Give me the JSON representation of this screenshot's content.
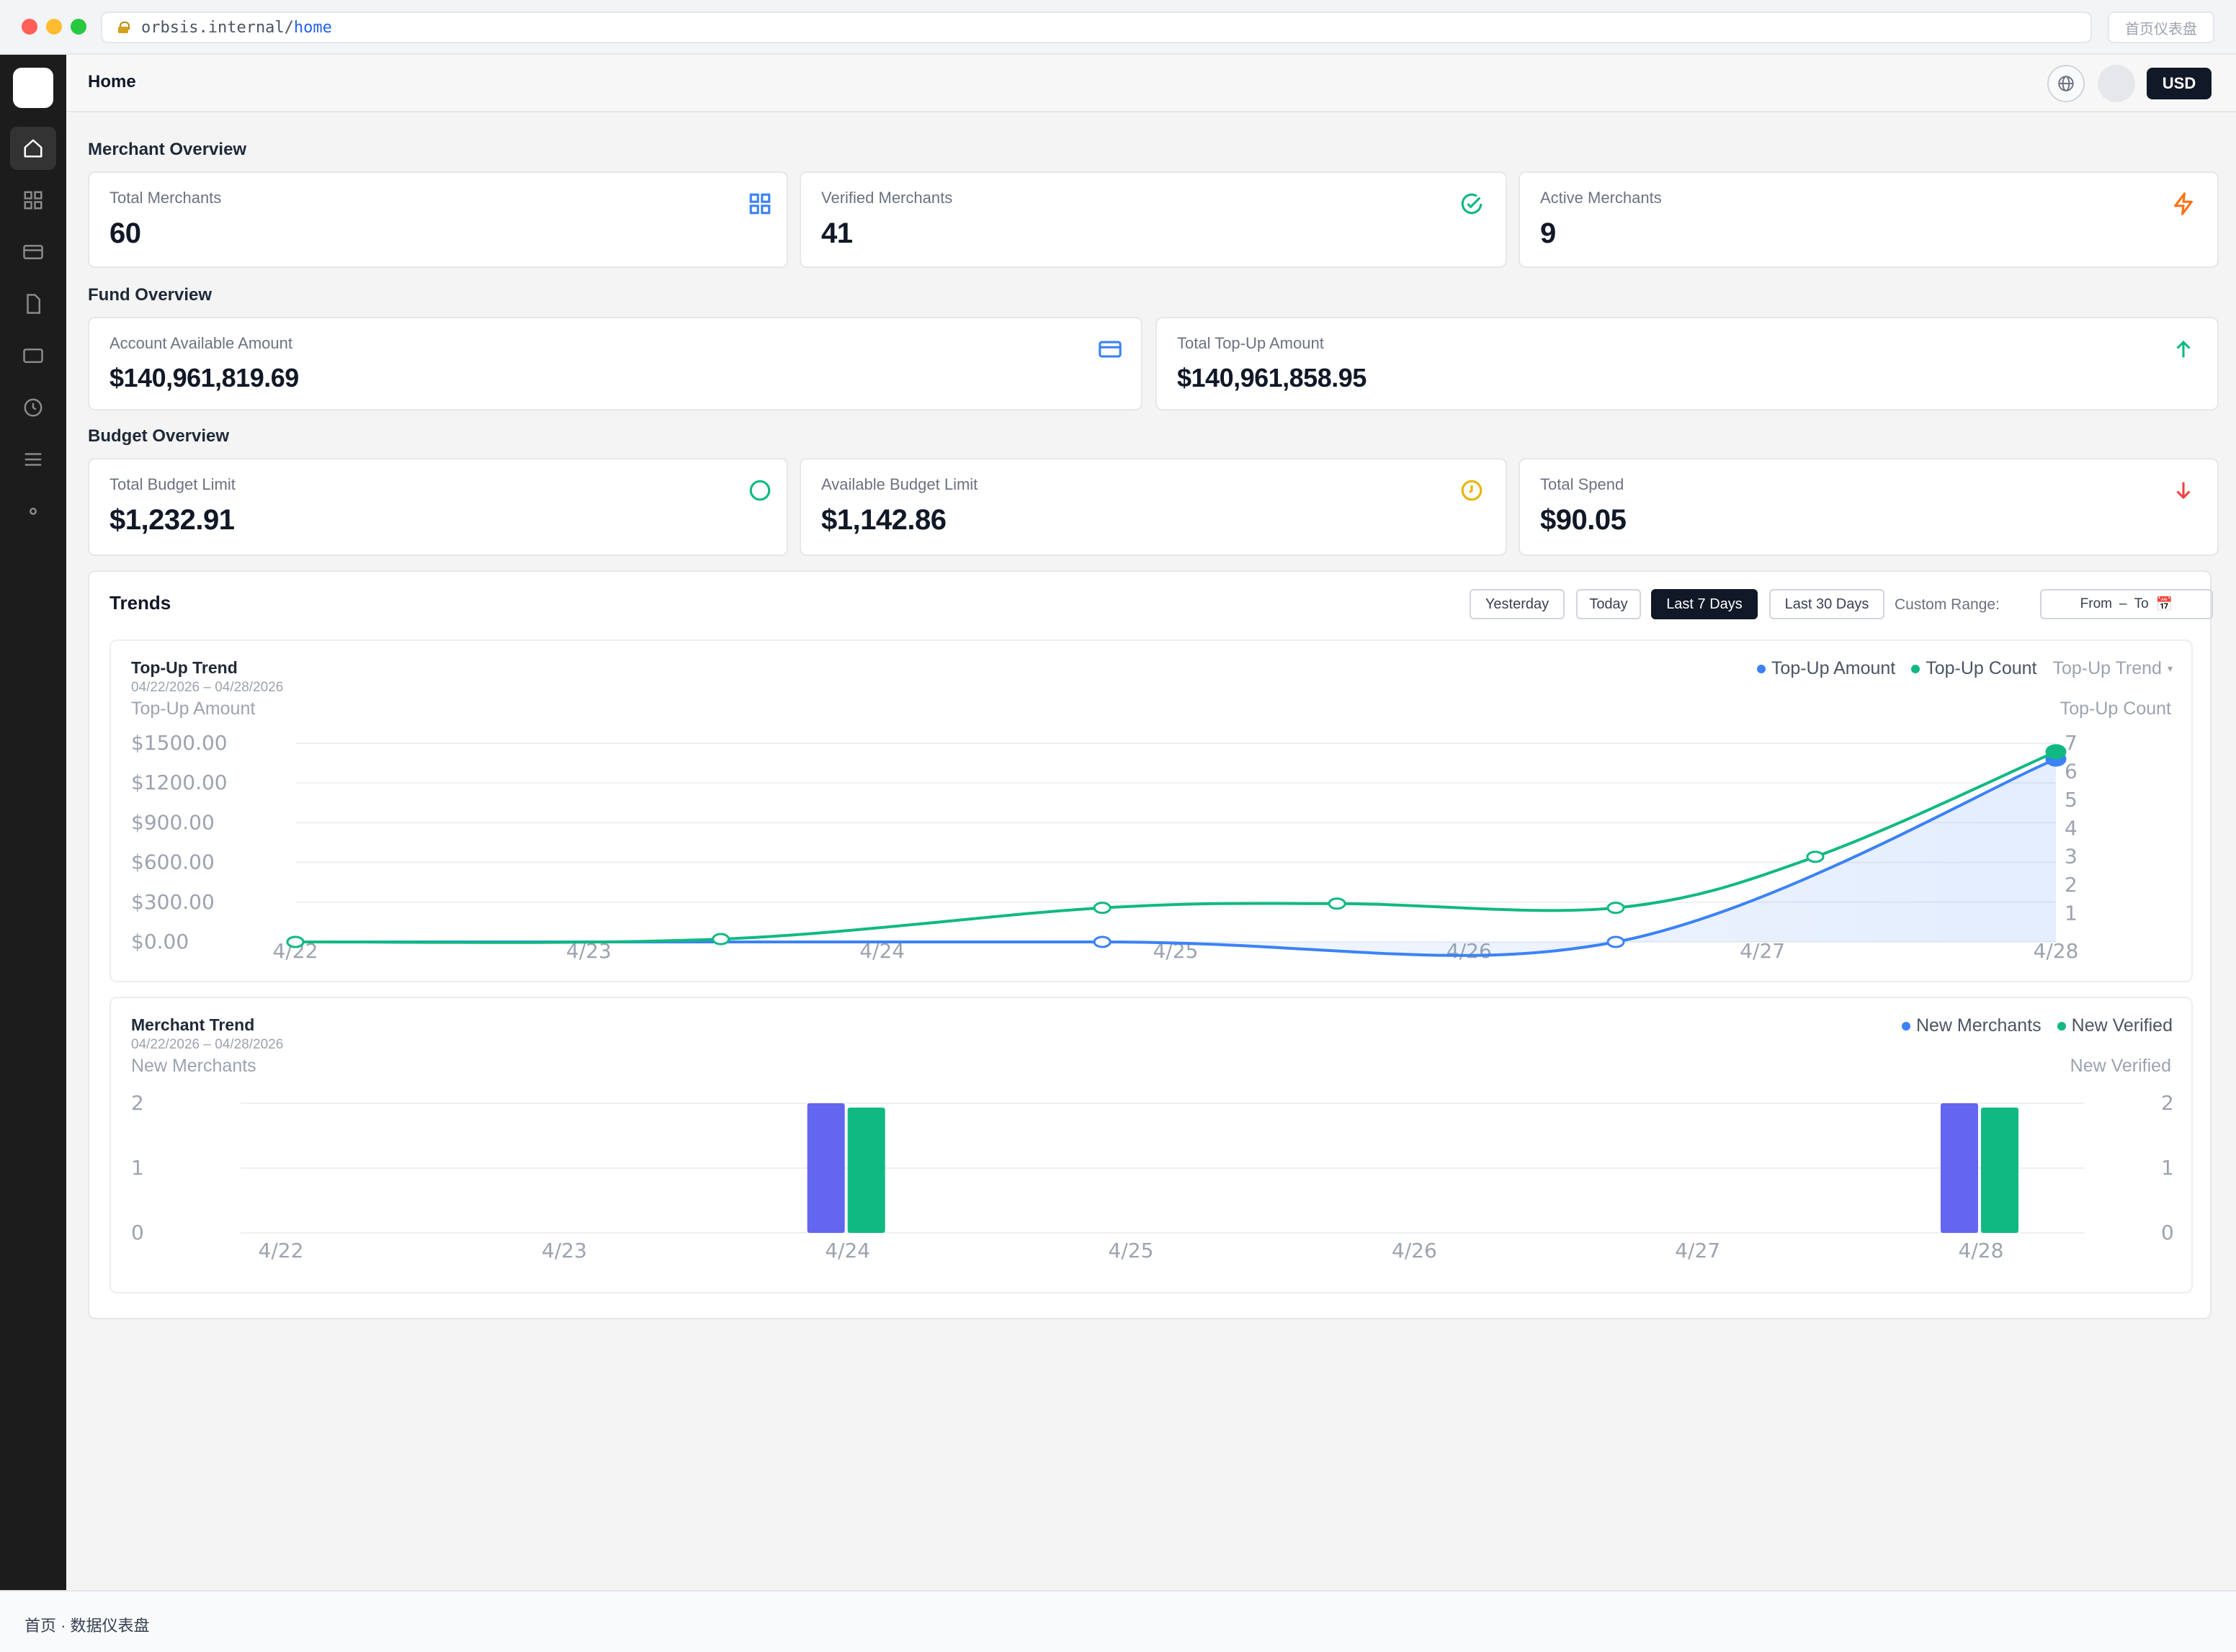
{
  "browser": {
    "url_host": "orbsis.internal/",
    "url_path": "home",
    "tab_title": "首页仪表盘"
  },
  "topbar": {
    "title": "Home",
    "currency": "USD"
  },
  "merchant_overview": {
    "title": "Merchant Overview",
    "cards": [
      {
        "label": "Total Merchants",
        "value": "60",
        "icon": "grid-icon",
        "color": "#3b82f6"
      },
      {
        "label": "Verified Merchants",
        "value": "41",
        "icon": "check-circle-icon",
        "color": "#10b981"
      },
      {
        "label": "Active Merchants",
        "value": "9",
        "icon": "lightning-icon",
        "color": "#f97316"
      }
    ]
  },
  "fund_overview": {
    "title": "Fund Overview",
    "cards": [
      {
        "label": "Account Available Amount",
        "value": "$140,961,819.69",
        "icon": "credit-card-icon",
        "color": "#3b82f6"
      },
      {
        "label": "Total Top-Up Amount",
        "value": "$140,961,858.95",
        "icon": "arrow-up-icon",
        "color": "#10b981"
      }
    ]
  },
  "budget_overview": {
    "title": "Budget Overview",
    "cards": [
      {
        "label": "Total Budget Limit",
        "value": "$1,232.91",
        "icon": "circle-icon",
        "color": "#10b981"
      },
      {
        "label": "Available Budget Limit",
        "value": "$1,142.86",
        "icon": "clock-icon",
        "color": "#eab308"
      },
      {
        "label": "Total Spend",
        "value": "$90.05",
        "icon": "arrow-down-icon",
        "color": "#ef4444"
      }
    ]
  },
  "trends": {
    "title": "Trends",
    "ranges": [
      "Yesterday",
      "Today",
      "Last 7 Days",
      "Last 30 Days"
    ],
    "active_range": "Last 7 Days",
    "custom_label": "Custom Range:",
    "from_label": "From",
    "dash": "–",
    "to_label": "To",
    "calendar_glyph": "📅"
  },
  "chart_data": [
    {
      "type": "line",
      "title": "Top-Up Trend",
      "subtitle": "04/22/2026 – 04/28/2026",
      "ylabel": "Top-Up Amount",
      "y2label": "Top-Up Count",
      "selector": "Top-Up Trend",
      "x": [
        "4/22",
        "4/23",
        "4/24",
        "4/25",
        "4/26",
        "4/27",
        "4/28"
      ],
      "ylim": [
        0,
        1500
      ],
      "yticks": [
        "$0.00",
        "$300.00",
        "$600.00",
        "$900.00",
        "$1200.00",
        "$1500.00"
      ],
      "y2lim": [
        0,
        7
      ],
      "y2ticks": [
        "1",
        "2",
        "3",
        "4",
        "5",
        "6",
        "7"
      ],
      "series": [
        {
          "name": "Top-Up Amount",
          "axis": "left",
          "color": "#3b82f6",
          "points": [
            [
              0,
              0
            ],
            [
              2.75,
              0
            ],
            [
              4.5,
              0
            ],
            [
              6,
              1380
            ]
          ]
        },
        {
          "name": "Top-Up Count",
          "axis": "right",
          "color": "#10b981",
          "points": [
            [
              0,
              0
            ],
            [
              1.45,
              0.1
            ],
            [
              2.75,
              1.2
            ],
            [
              3.55,
              1.35
            ],
            [
              4.5,
              1.2
            ],
            [
              5.18,
              3.0
            ],
            [
              6,
              6.7
            ]
          ]
        }
      ],
      "legend": "top-right",
      "grid": true
    },
    {
      "type": "bar",
      "title": "Merchant Trend",
      "subtitle": "04/22/2026 – 04/28/2026",
      "ylabel": "New Merchants",
      "y2label": "New Verified",
      "categories": [
        "4/22",
        "4/23",
        "4/24",
        "4/25",
        "4/26",
        "4/27",
        "4/28"
      ],
      "ylim": [
        0,
        2
      ],
      "yticks": [
        "0",
        "1",
        "2"
      ],
      "series": [
        {
          "name": "New Merchants",
          "color": "#6366f1",
          "values": [
            0,
            0,
            2,
            0,
            0,
            0,
            2
          ]
        },
        {
          "name": "New Verified",
          "color": "#10b981",
          "values": [
            0,
            0,
            2,
            0,
            0,
            0,
            2
          ]
        }
      ],
      "legend": "top-right",
      "grid": true
    }
  ],
  "footer": {
    "text": "首页 · 数据仪表盘"
  }
}
